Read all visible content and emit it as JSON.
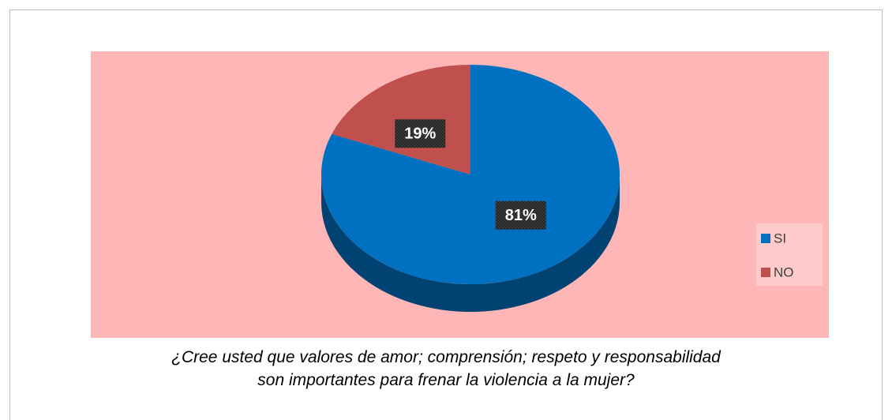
{
  "chart_data": {
    "type": "pie",
    "categories": [
      "SI",
      "NO"
    ],
    "values": [
      81,
      19
    ],
    "value_labels": [
      "81%",
      "19%"
    ],
    "colors": [
      "#0070c0",
      "#c0504d"
    ],
    "legend": "right",
    "caption": "¿Cree usted que valores de amor; comprensión; respeto y responsabilidad son importantes para frenar la violencia a la mujer?"
  }
}
